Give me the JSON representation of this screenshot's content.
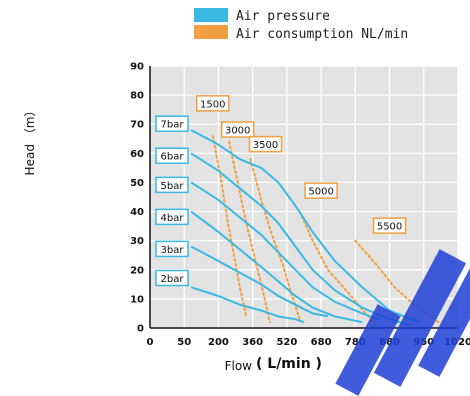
{
  "chart_data": {
    "type": "line",
    "title": "",
    "xlabel": "Flow",
    "xlabel_unit": "( L/min )",
    "ylabel": "Head （m）",
    "xlim": [
      0,
      1020
    ],
    "ylim": [
      0,
      90
    ],
    "x_ticks": [
      0,
      50,
      200,
      360,
      520,
      680,
      780,
      880,
      950,
      1020
    ],
    "y_ticks": [
      0,
      10,
      20,
      30,
      40,
      50,
      60,
      70,
      80,
      90
    ],
    "grid": true,
    "legend": {
      "placement": "top",
      "entries": [
        {
          "label": "Air pressure",
          "color": "#3bb8e3"
        },
        {
          "label": "Air consumption NL/min",
          "color": "#f0a040"
        }
      ]
    },
    "series": [
      {
        "name": "7bar",
        "color": "#3bb8e3",
        "points": [
          [
            80,
            68
          ],
          [
            200,
            63
          ],
          [
            300,
            58
          ],
          [
            400,
            55
          ],
          [
            480,
            50
          ],
          [
            560,
            42
          ],
          [
            640,
            33
          ],
          [
            720,
            23
          ],
          [
            800,
            14
          ],
          [
            880,
            6
          ],
          [
            940,
            2
          ]
        ]
      },
      {
        "name": "6bar",
        "color": "#3bb8e3",
        "points": [
          [
            80,
            60
          ],
          [
            200,
            54
          ],
          [
            300,
            48
          ],
          [
            400,
            42
          ],
          [
            480,
            36
          ],
          [
            560,
            28
          ],
          [
            640,
            20
          ],
          [
            720,
            13
          ],
          [
            800,
            7
          ],
          [
            880,
            3
          ],
          [
            920,
            1
          ]
        ]
      },
      {
        "name": "5bar",
        "color": "#3bb8e3",
        "points": [
          [
            80,
            50
          ],
          [
            200,
            44
          ],
          [
            300,
            38
          ],
          [
            400,
            32
          ],
          [
            480,
            26
          ],
          [
            560,
            20
          ],
          [
            640,
            14
          ],
          [
            720,
            9
          ],
          [
            800,
            5
          ],
          [
            850,
            3
          ]
        ]
      },
      {
        "name": "4bar",
        "color": "#3bb8e3",
        "points": [
          [
            80,
            40
          ],
          [
            200,
            33
          ],
          [
            300,
            27
          ],
          [
            400,
            21
          ],
          [
            480,
            16
          ],
          [
            560,
            11
          ],
          [
            640,
            7
          ],
          [
            720,
            4
          ],
          [
            800,
            2
          ]
        ]
      },
      {
        "name": "3bar",
        "color": "#3bb8e3",
        "points": [
          [
            80,
            28
          ],
          [
            200,
            23
          ],
          [
            300,
            19
          ],
          [
            400,
            15
          ],
          [
            480,
            11
          ],
          [
            560,
            8
          ],
          [
            640,
            5
          ],
          [
            700,
            4
          ]
        ]
      },
      {
        "name": "2bar",
        "color": "#3bb8e3",
        "points": [
          [
            80,
            14
          ],
          [
            200,
            11
          ],
          [
            300,
            8
          ],
          [
            400,
            6
          ],
          [
            480,
            4
          ],
          [
            560,
            3
          ],
          [
            600,
            2
          ]
        ]
      }
    ],
    "consumption_curves": [
      {
        "name": "1500",
        "color": "#f0a040",
        "points": [
          [
            175,
            66
          ],
          [
            210,
            52
          ],
          [
            240,
            38
          ],
          [
            270,
            26
          ],
          [
            300,
            14
          ],
          [
            330,
            4
          ]
        ]
      },
      {
        "name": "3000",
        "color": "#f0a040",
        "points": [
          [
            250,
            64
          ],
          [
            290,
            50
          ],
          [
            330,
            36
          ],
          [
            370,
            24
          ],
          [
            410,
            12
          ],
          [
            440,
            2
          ]
        ]
      },
      {
        "name": "3500",
        "color": "#f0a040",
        "points": [
          [
            350,
            58
          ],
          [
            400,
            44
          ],
          [
            450,
            32
          ],
          [
            500,
            22
          ],
          [
            540,
            12
          ],
          [
            580,
            3
          ]
        ]
      },
      {
        "name": "5000",
        "color": "#f0a040",
        "points": [
          [
            580,
            40
          ],
          [
            640,
            30
          ],
          [
            700,
            20
          ],
          [
            760,
            12
          ],
          [
            810,
            5
          ],
          [
            840,
            1
          ]
        ]
      },
      {
        "name": "5500",
        "color": "#f0a040",
        "points": [
          [
            780,
            30
          ],
          [
            840,
            22
          ],
          [
            890,
            14
          ],
          [
            930,
            8
          ],
          [
            980,
            2
          ]
        ]
      }
    ],
    "pressure_tags": [
      {
        "label": "7bar",
        "y": 70
      },
      {
        "label": "6bar",
        "y": 59
      },
      {
        "label": "5bar",
        "y": 49
      },
      {
        "label": "4bar",
        "y": 38
      },
      {
        "label": "3bar",
        "y": 27
      },
      {
        "label": "2bar",
        "y": 17
      }
    ],
    "consumption_tags": [
      {
        "label": "1500",
        "x": 175,
        "y": 77
      },
      {
        "label": "3000",
        "x": 290,
        "y": 68
      },
      {
        "label": "3500",
        "x": 420,
        "y": 63
      },
      {
        "label": "5000",
        "x": 680,
        "y": 47
      },
      {
        "label": "5500",
        "x": 880,
        "y": 35
      }
    ]
  }
}
